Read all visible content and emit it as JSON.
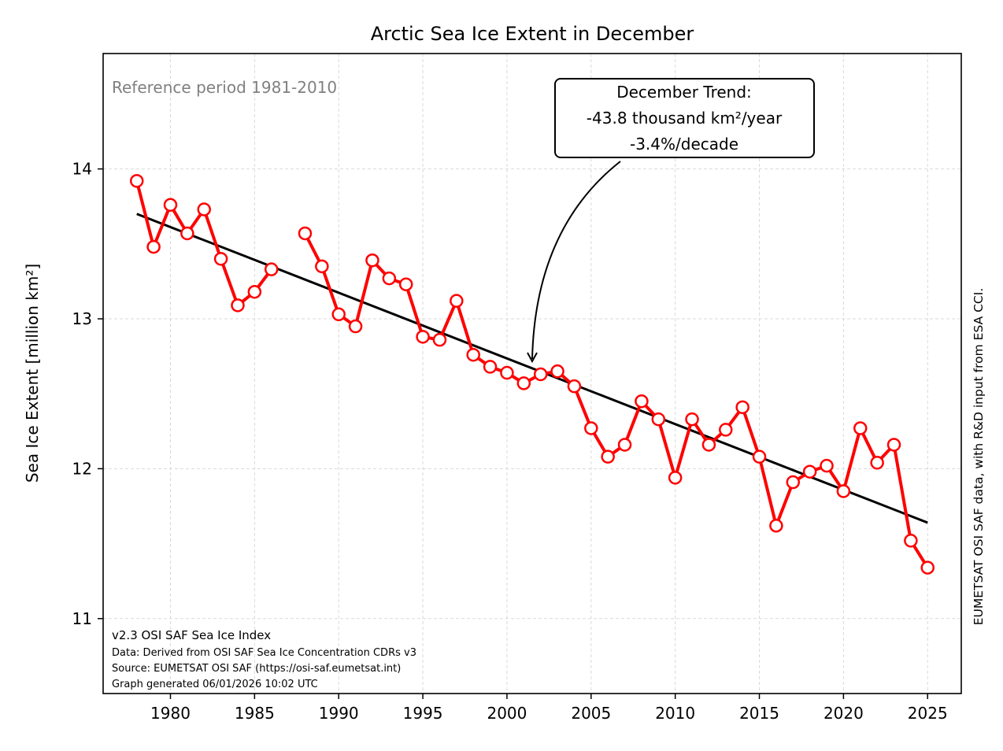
{
  "chart_data": {
    "type": "line",
    "title": "Arctic Sea Ice Extent in December",
    "xlabel": "",
    "ylabel": "Sea Ice Extent [million km²]",
    "xlim": [
      1976.0,
      2027.0
    ],
    "ylim": [
      10.5,
      14.77
    ],
    "xticks": [
      1980,
      1985,
      1990,
      1995,
      2000,
      2005,
      2010,
      2015,
      2020,
      2025
    ],
    "yticks": [
      11,
      12,
      13,
      14
    ],
    "grid": true,
    "series": [
      {
        "color": "#ff0000",
        "marker": "open-circle",
        "x": [
          1978,
          1979,
          1980,
          1981,
          1982,
          1983,
          1984,
          1985,
          1986,
          1987,
          1988,
          1989,
          1990,
          1991,
          1992,
          1993,
          1994,
          1995,
          1996,
          1997,
          1998,
          1999,
          2000,
          2001,
          2002,
          2003,
          2004,
          2005,
          2006,
          2007,
          2008,
          2009,
          2010,
          2011,
          2012,
          2013,
          2014,
          2015,
          2016,
          2017,
          2018,
          2019,
          2020,
          2021,
          2022,
          2023,
          2024,
          2025
        ],
        "y": [
          13.92,
          13.48,
          13.76,
          13.57,
          13.73,
          13.4,
          13.09,
          13.18,
          13.33,
          null,
          13.57,
          13.35,
          13.03,
          12.95,
          13.39,
          13.27,
          13.23,
          12.88,
          12.86,
          13.12,
          12.76,
          12.68,
          12.64,
          12.57,
          12.63,
          12.65,
          12.55,
          12.27,
          12.08,
          12.16,
          12.45,
          12.33,
          11.94,
          12.33,
          12.16,
          12.26,
          12.41,
          12.08,
          11.62,
          11.91,
          11.98,
          12.02,
          11.85,
          12.27,
          12.04,
          12.16,
          11.52,
          11.34
        ]
      }
    ],
    "trend": {
      "color": "#000000",
      "x": [
        1978,
        2025
      ],
      "y": [
        13.7,
        11.64
      ]
    },
    "annotation": {
      "lines": [
        "December Trend:",
        "-43.8 thousand km²/year",
        "-3.4%/decade"
      ],
      "points_to": [
        2001.6,
        12.69
      ]
    },
    "reference_text": "Reference period 1981-2010",
    "footer_lines": [
      "v2.3 OSI SAF Sea Ice Index",
      "Data: Derived from OSI SAF Sea Ice Concentration CDRs v3",
      "Source: EUMETSAT OSI SAF (https://osi-saf.eumetsat.int)",
      "Graph generated 06/01/2026 10:02 UTC"
    ],
    "side_credit": "EUMETSAT OSI SAF data, with R&D input from ESA CCI."
  }
}
